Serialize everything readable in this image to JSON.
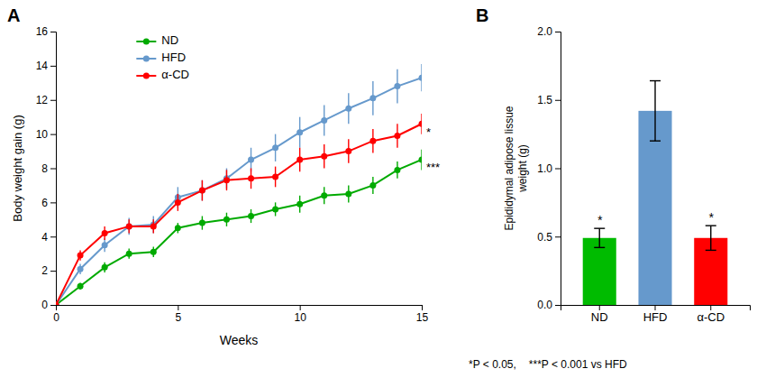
{
  "chart_data": [
    {
      "type": "line",
      "title": "A",
      "xlabel": "Weeks",
      "ylabel": "Body weight gain (g)",
      "x": [
        0,
        1,
        2,
        3,
        4,
        5,
        6,
        7,
        8,
        9,
        10,
        11,
        12,
        13,
        14,
        15
      ],
      "series": [
        {
          "name": "ND",
          "color": "#00aa00",
          "marker": "circle",
          "values": [
            0,
            1.1,
            2.2,
            3.0,
            3.1,
            4.5,
            4.8,
            5.0,
            5.2,
            5.6,
            5.9,
            6.4,
            6.5,
            7.0,
            7.9,
            8.5
          ],
          "errors": [
            0,
            0.2,
            0.3,
            0.3,
            0.3,
            0.3,
            0.4,
            0.4,
            0.4,
            0.4,
            0.5,
            0.5,
            0.5,
            0.5,
            0.5,
            0.6
          ]
        },
        {
          "name": "HFD",
          "color": "#6699cc",
          "marker": "circle",
          "values": [
            0,
            2.1,
            3.5,
            4.6,
            4.7,
            6.3,
            6.7,
            7.4,
            8.5,
            9.2,
            10.1,
            10.8,
            11.5,
            12.1,
            12.8,
            13.3
          ],
          "errors": [
            0,
            0.3,
            0.4,
            0.5,
            0.5,
            0.6,
            0.6,
            0.6,
            0.7,
            0.8,
            0.9,
            0.9,
            0.9,
            1.0,
            1.0,
            0.8
          ]
        },
        {
          "name": "α-CD",
          "color": "#ff0000",
          "marker": "circle",
          "values": [
            0,
            2.9,
            4.2,
            4.6,
            4.6,
            6.0,
            6.7,
            7.3,
            7.4,
            7.5,
            8.5,
            8.7,
            9.0,
            9.6,
            9.9,
            10.6
          ],
          "errors": [
            0,
            0.3,
            0.4,
            0.4,
            0.4,
            0.5,
            0.6,
            0.6,
            0.6,
            0.6,
            0.7,
            0.7,
            0.7,
            0.7,
            0.7,
            0.6
          ]
        }
      ],
      "xlim": [
        0,
        15
      ],
      "xticks": [
        0,
        5,
        10,
        15
      ],
      "ylim": [
        0,
        16
      ],
      "yticks": [
        0,
        2,
        4,
        6,
        8,
        10,
        12,
        14,
        16
      ],
      "legend": "upper left",
      "grid": false,
      "annotations": [
        {
          "text": "*",
          "series": "α-CD"
        },
        {
          "text": "***",
          "series": "ND"
        }
      ]
    },
    {
      "type": "bar",
      "title": "B",
      "ylabel": "Epididymal adipose lissue\nweight  (g)",
      "categories": [
        "ND",
        "HFD",
        "α-CD"
      ],
      "values": [
        0.49,
        1.42,
        0.49
      ],
      "errors": [
        0.07,
        0.22,
        0.09
      ],
      "colors": [
        "#00bb00",
        "#6699cc",
        "#ff0000"
      ],
      "ylim": [
        0,
        2.0
      ],
      "yticks": [
        {
          "value": 0.0,
          "label": "0.0"
        },
        0.5,
        {
          "value": 1.0,
          "label": "1.0"
        },
        1.5,
        {
          "value": 2.0,
          "label": "2.0"
        }
      ],
      "grid": false,
      "annotations": [
        {
          "text": "*",
          "category": "ND"
        },
        {
          "text": "*",
          "category": "α-CD"
        },
        {
          "text": "*P < 0.05,"
        },
        {
          "text": "***P < 0.001 vs HFD"
        }
      ]
    }
  ]
}
